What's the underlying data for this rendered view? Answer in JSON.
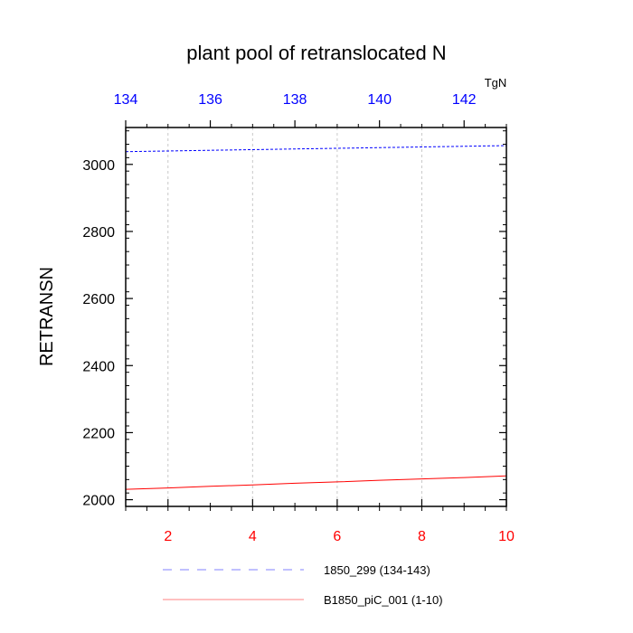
{
  "chart_data": {
    "type": "line",
    "title": "plant pool of retranslocated N",
    "ylabel": "RETRANSN",
    "units_label": "TgN",
    "ylim": [
      1980,
      3110
    ],
    "y_ticks": [
      2000,
      2200,
      2400,
      2600,
      2800,
      3000
    ],
    "y_tick_labels": [
      "2000",
      "2200",
      "2400",
      "2600",
      "2800",
      "3000"
    ],
    "x_bottom": {
      "range": [
        1,
        10
      ],
      "ticks": [
        2,
        4,
        6,
        8,
        10
      ],
      "tick_labels": [
        "2",
        "4",
        "6",
        "8",
        "10"
      ],
      "color": "#ff0000"
    },
    "x_top": {
      "range": [
        134,
        143
      ],
      "ticks": [
        134,
        136,
        138,
        140,
        142
      ],
      "tick_labels": [
        "134",
        "136",
        "138",
        "140",
        "142"
      ],
      "color": "#0000ff"
    },
    "grid": "vertical dashed",
    "series": [
      {
        "name": "1850_299 (134-143)",
        "axis": "top",
        "color": "#0000ff",
        "style": "dashed",
        "x": [
          134,
          135,
          136,
          137,
          138,
          139,
          140,
          141,
          142,
          143
        ],
        "values": [
          3038,
          3040,
          3042,
          3044,
          3046,
          3048,
          3050,
          3052,
          3054,
          3056
        ]
      },
      {
        "name": "B1850_piC_001 (1-10)",
        "axis": "bottom",
        "color": "#ff0000",
        "style": "solid",
        "x": [
          1,
          2,
          3,
          4,
          5,
          6,
          7,
          8,
          9,
          10
        ],
        "values": [
          2031,
          2035,
          2040,
          2044,
          2049,
          2053,
          2058,
          2062,
          2066,
          2071
        ]
      }
    ],
    "legend": {
      "placement": "below plot",
      "entries": [
        "1850_299 (134-143)",
        "B1850_piC_001 (1-10)"
      ]
    }
  }
}
